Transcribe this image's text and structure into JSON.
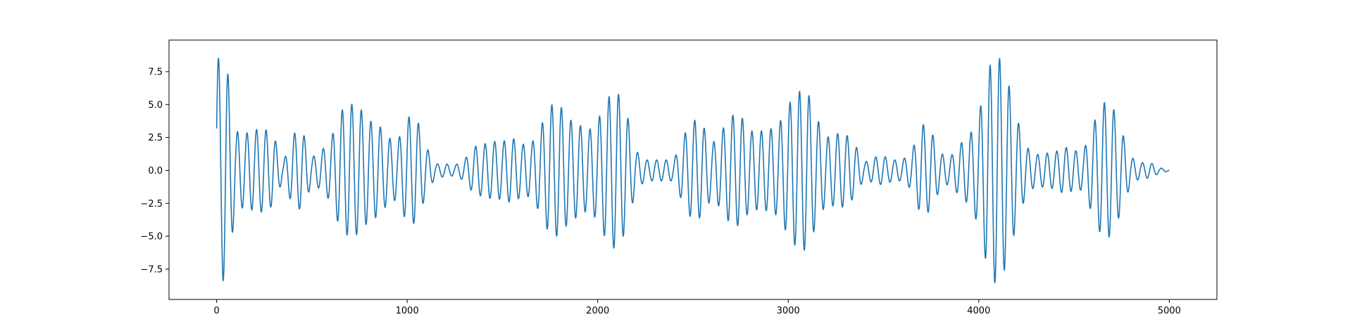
{
  "chart_data": {
    "type": "line",
    "title": "",
    "xlabel": "",
    "ylabel": "",
    "xlim": [
      -250,
      5250
    ],
    "ylim": [
      -9.8,
      9.9
    ],
    "xticks": [
      0,
      1000,
      2000,
      3000,
      4000,
      5000
    ],
    "xtick_labels": [
      "0",
      "1000",
      "2000",
      "3000",
      "4000",
      "5000"
    ],
    "yticks": [
      -7.5,
      -5.0,
      -2.5,
      0.0,
      2.5,
      5.0,
      7.5
    ],
    "ytick_labels": [
      "−7.5",
      "−5.0",
      "−2.5",
      "0.0",
      "2.5",
      "5.0",
      "7.5"
    ],
    "grid": false,
    "legend": "none",
    "series": [
      {
        "color": "#1f77b4",
        "sample_interval": 50,
        "oscillation_period": 50,
        "x_start": 0,
        "x_end": 5000,
        "envelope": [
          [
            0,
            8.6
          ],
          [
            50,
            8.3
          ],
          [
            100,
            3.0
          ],
          [
            150,
            2.8
          ],
          [
            200,
            3.1
          ],
          [
            250,
            3.2
          ],
          [
            300,
            2.6
          ],
          [
            350,
            0.6
          ],
          [
            400,
            2.8
          ],
          [
            450,
            3.0
          ],
          [
            500,
            1.0
          ],
          [
            550,
            1.5
          ],
          [
            600,
            2.4
          ],
          [
            650,
            4.5
          ],
          [
            700,
            5.1
          ],
          [
            750,
            4.8
          ],
          [
            800,
            3.8
          ],
          [
            850,
            3.5
          ],
          [
            900,
            2.5
          ],
          [
            950,
            2.2
          ],
          [
            1000,
            4.1
          ],
          [
            1050,
            4.0
          ],
          [
            1100,
            1.8
          ],
          [
            1150,
            0.5
          ],
          [
            1200,
            0.5
          ],
          [
            1250,
            0.4
          ],
          [
            1300,
            0.8
          ],
          [
            1350,
            1.8
          ],
          [
            1400,
            2.0
          ],
          [
            1450,
            2.2
          ],
          [
            1500,
            2.2
          ],
          [
            1550,
            2.5
          ],
          [
            1600,
            2.0
          ],
          [
            1650,
            2.0
          ],
          [
            1700,
            3.3
          ],
          [
            1750,
            5.0
          ],
          [
            1800,
            5.0
          ],
          [
            1850,
            3.9
          ],
          [
            1900,
            3.5
          ],
          [
            1950,
            3.0
          ],
          [
            2000,
            3.8
          ],
          [
            2050,
            5.5
          ],
          [
            2100,
            6.1
          ],
          [
            2150,
            4.5
          ],
          [
            2200,
            1.5
          ],
          [
            2250,
            0.8
          ],
          [
            2300,
            0.8
          ],
          [
            2350,
            0.8
          ],
          [
            2400,
            0.8
          ],
          [
            2450,
            2.6
          ],
          [
            2500,
            3.9
          ],
          [
            2550,
            3.5
          ],
          [
            2600,
            2.0
          ],
          [
            2650,
            3.0
          ],
          [
            2700,
            4.2
          ],
          [
            2750,
            4.2
          ],
          [
            2800,
            3.0
          ],
          [
            2850,
            3.0
          ],
          [
            2900,
            3.1
          ],
          [
            2950,
            3.5
          ],
          [
            3000,
            5.0
          ],
          [
            3050,
            6.0
          ],
          [
            3100,
            6.1
          ],
          [
            3150,
            4.0
          ],
          [
            3200,
            2.5
          ],
          [
            3250,
            2.8
          ],
          [
            3300,
            2.8
          ],
          [
            3350,
            2.0
          ],
          [
            3400,
            0.6
          ],
          [
            3450,
            1.0
          ],
          [
            3500,
            1.1
          ],
          [
            3550,
            0.8
          ],
          [
            3600,
            0.8
          ],
          [
            3650,
            1.5
          ],
          [
            3700,
            3.6
          ],
          [
            3750,
            3.0
          ],
          [
            3800,
            1.3
          ],
          [
            3850,
            1.0
          ],
          [
            3900,
            2.0
          ],
          [
            3950,
            2.6
          ],
          [
            4000,
            4.2
          ],
          [
            4050,
            7.8
          ],
          [
            4100,
            8.9
          ],
          [
            4150,
            7.0
          ],
          [
            4200,
            4.0
          ],
          [
            4250,
            1.8
          ],
          [
            4300,
            1.2
          ],
          [
            4350,
            1.3
          ],
          [
            4400,
            1.4
          ],
          [
            4450,
            1.8
          ],
          [
            4500,
            1.5
          ],
          [
            4550,
            1.5
          ],
          [
            4600,
            3.5
          ],
          [
            4650,
            5.2
          ],
          [
            4700,
            5.0
          ],
          [
            4750,
            3.0
          ],
          [
            4800,
            1.0
          ],
          [
            4850,
            0.6
          ],
          [
            4900,
            0.6
          ],
          [
            4950,
            0.2
          ],
          [
            5000,
            0.05
          ]
        ]
      }
    ]
  }
}
